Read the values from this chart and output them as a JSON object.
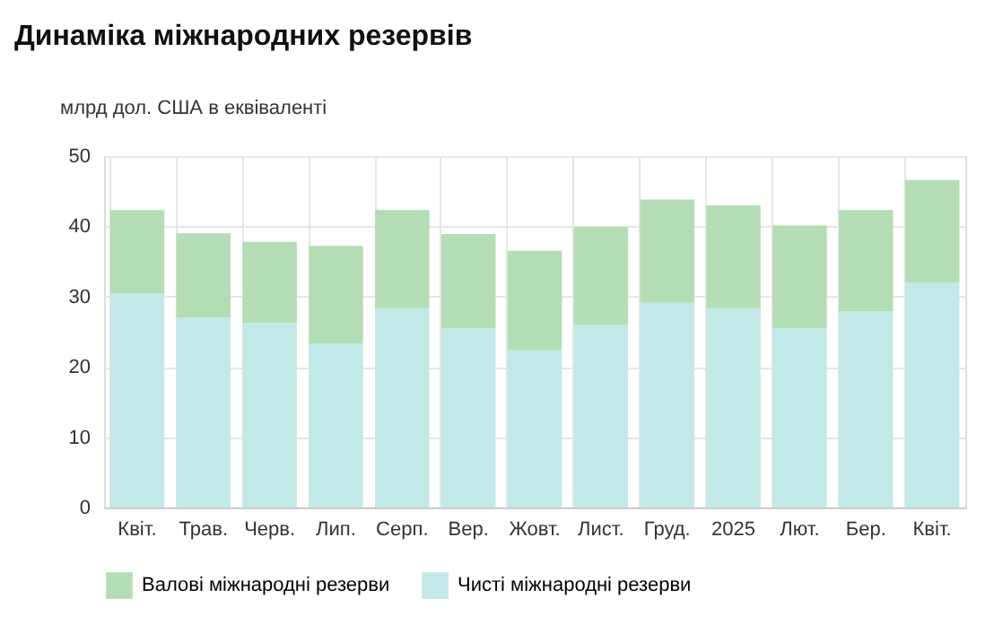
{
  "chart_data": {
    "type": "bar",
    "title": "Динаміка міжнародних резервів",
    "ylabel": "млрд дол. США в еквіваленті",
    "categories": [
      "Квіт.",
      "Трав.",
      "Черв.",
      "Лип.",
      "Серп.",
      "Вер.",
      "Жовт.",
      "Лист.",
      "Груд.",
      "2025",
      "Лют.",
      "Бер.",
      "Квіт."
    ],
    "stacked": true,
    "series": [
      {
        "name": "Чисті міжнародні резерви",
        "color": "#c2e9e7",
        "values": [
          30.5,
          27.0,
          26.2,
          23.3,
          28.3,
          25.5,
          22.4,
          26.0,
          29.1,
          28.3,
          25.5,
          27.9,
          32.0
        ]
      },
      {
        "name": "Валові міжнародні резерви",
        "color": "#b5ddb5",
        "values": [
          11.8,
          12.0,
          11.6,
          13.9,
          14.0,
          13.4,
          14.1,
          13.9,
          14.7,
          14.7,
          14.6,
          14.4,
          14.6
        ]
      }
    ],
    "ylim": [
      0,
      50
    ],
    "yticks": [
      0,
      10,
      20,
      30,
      40,
      50
    ],
    "grid": true,
    "legend": "bottom"
  }
}
